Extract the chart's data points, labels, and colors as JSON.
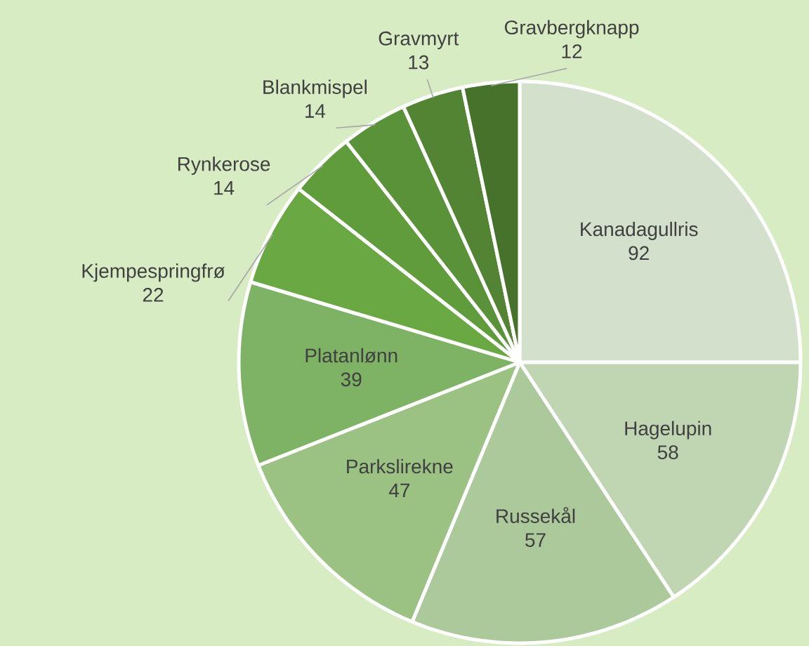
{
  "chart_data": {
    "type": "pie",
    "categories": [
      "Kanadagullris",
      "Hagelupin",
      "Russekål",
      "Parkslirekne",
      "Platanlønn",
      "Kjempespringfrø",
      "Rynkerose",
      "Blankmispel",
      "Gravmyrt",
      "Gravbergknapp"
    ],
    "values": [
      92,
      58,
      57,
      47,
      39,
      22,
      14,
      14,
      13,
      12
    ],
    "colors": [
      "#d2e0cc",
      "#c0d6b3",
      "#abc99b",
      "#9bc183",
      "#7eb264",
      "#6aa843",
      "#609c3c",
      "#5a9239",
      "#538434",
      "#47722c"
    ],
    "data_labels": true
  }
}
